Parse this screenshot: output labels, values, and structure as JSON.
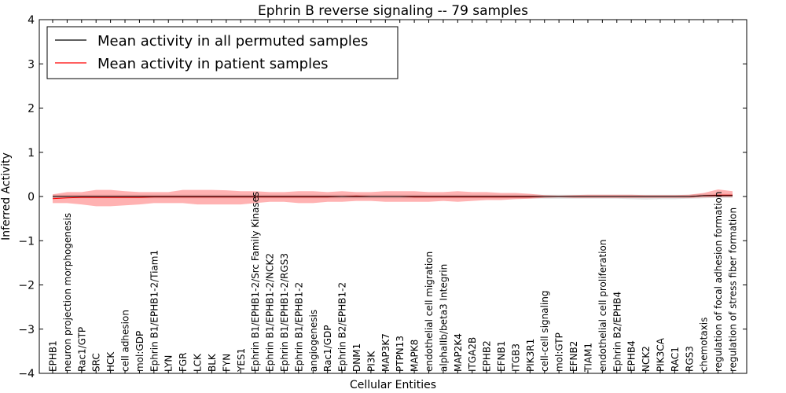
{
  "chart_data": {
    "type": "line",
    "title": "Ephrin B reverse signaling -- 79 samples",
    "xlabel": "Cellular Entities",
    "ylabel": "Inferred Activity",
    "ylim": [
      -4,
      4
    ],
    "yticks": [
      -4,
      -3,
      -2,
      -1,
      0,
      1,
      2,
      3,
      4
    ],
    "ytick_labels": [
      "−4",
      "−3",
      "−2",
      "−1",
      "0",
      "1",
      "2",
      "3",
      "4"
    ],
    "categories": [
      "EPHB1",
      "neuron projection morphogenesis",
      "Rac1/GTP",
      "SRC",
      "HCK",
      "cell adhesion",
      "mol:GDP",
      "Ephrin B1/EPHB1-2/Tiam1",
      "LYN",
      "FGR",
      "LCK",
      "BLK",
      "FYN",
      "YES1",
      "Ephrin B1/EPHB1-2/Src Family Kinases",
      "Ephrin B1/EPHB1-2/NCK2",
      "Ephrin B1/EPHB1-2/RGS3",
      "Ephrin B1/EPHB1-2",
      "angiogenesis",
      "Rac1/GDP",
      "Ephrin B2/EPHB1-2",
      "DNM1",
      "PI3K",
      "MAP3K7",
      "PTPN13",
      "MAPK8",
      "endothelial cell migration",
      "alphaIIb/beta3 Integrin",
      "MAP2K4",
      "ITGA2B",
      "EPHB2",
      "EFNB1",
      "ITGB3",
      "PIK3R1",
      "cell-cell signaling",
      "mol:GTP",
      "EFNB2",
      "TIAM1",
      "endothelial cell proliferation",
      "Ephrin B2/EPHB4",
      "EPHB4",
      "NCK2",
      "PIK3CA",
      "RAC1",
      "RGS3",
      "chemotaxis",
      "regulation of focal adhesion formation",
      "regulation of stress fiber formation"
    ],
    "series": [
      {
        "name": "Mean activity in all permuted samples",
        "color": "#000000",
        "values": [
          0,
          0,
          0,
          0,
          0,
          0,
          0,
          0,
          0,
          0,
          0,
          0,
          0,
          0,
          0,
          0,
          0,
          0,
          0,
          0,
          0,
          0,
          0,
          0,
          0,
          0,
          0,
          0,
          0,
          0,
          0,
          0,
          0,
          0,
          0,
          0,
          0,
          0,
          0,
          0,
          0,
          0,
          0,
          0,
          0,
          0.02,
          0.02,
          0.02
        ],
        "band_upper": [
          0.04,
          0.04,
          0.04,
          0.04,
          0.04,
          0.04,
          0.04,
          0.04,
          0.04,
          0.04,
          0.04,
          0.04,
          0.04,
          0.04,
          0.04,
          0.04,
          0.04,
          0.04,
          0.04,
          0.04,
          0.04,
          0.04,
          0.04,
          0.04,
          0.04,
          0.04,
          0.04,
          0.04,
          0.04,
          0.04,
          0.04,
          0.04,
          0.04,
          0.04,
          0.04,
          0.04,
          0.04,
          0.04,
          0.04,
          0.04,
          0.04,
          0.04,
          0.04,
          0.04,
          0.04,
          0.06,
          0.06,
          0.06
        ],
        "band_lower": [
          -0.04,
          -0.04,
          -0.04,
          -0.04,
          -0.04,
          -0.04,
          -0.04,
          -0.04,
          -0.04,
          -0.04,
          -0.04,
          -0.04,
          -0.04,
          -0.04,
          -0.04,
          -0.04,
          -0.04,
          -0.04,
          -0.04,
          -0.04,
          -0.04,
          -0.04,
          -0.04,
          -0.04,
          -0.04,
          -0.04,
          -0.04,
          -0.04,
          -0.04,
          -0.04,
          -0.04,
          -0.04,
          -0.04,
          -0.04,
          -0.05,
          -0.05,
          -0.05,
          -0.05,
          -0.05,
          -0.05,
          -0.06,
          -0.07,
          -0.06,
          -0.06,
          -0.05,
          -0.04,
          -0.03,
          -0.03
        ]
      },
      {
        "name": "Mean activity in patient samples",
        "color": "#ff0000",
        "values": [
          -0.05,
          -0.03,
          -0.02,
          -0.02,
          -0.02,
          -0.02,
          -0.02,
          -0.01,
          -0.01,
          -0.01,
          -0.01,
          -0.01,
          -0.01,
          -0.01,
          -0.01,
          -0.01,
          -0.01,
          -0.01,
          -0.01,
          -0.01,
          0.0,
          0.01,
          0.0,
          0.0,
          0.0,
          -0.01,
          -0.01,
          -0.01,
          -0.01,
          -0.01,
          -0.01,
          -0.01,
          -0.01,
          -0.01,
          0.0,
          0.0,
          0.0,
          0.0,
          0.0,
          0.0,
          0.0,
          0.0,
          0.0,
          0.0,
          0.0,
          0.02,
          0.03,
          0.03
        ],
        "band_upper": [
          0.05,
          0.1,
          0.1,
          0.15,
          0.15,
          0.12,
          0.1,
          0.1,
          0.1,
          0.15,
          0.15,
          0.15,
          0.14,
          0.12,
          0.12,
          0.1,
          0.1,
          0.12,
          0.12,
          0.1,
          0.12,
          0.1,
          0.1,
          0.12,
          0.12,
          0.12,
          0.1,
          0.1,
          0.12,
          0.1,
          0.1,
          0.08,
          0.08,
          0.06,
          0.03,
          0.02,
          0.03,
          0.04,
          0.04,
          0.04,
          0.04,
          0.03,
          0.03,
          0.03,
          0.04,
          0.08,
          0.16,
          0.12
        ],
        "band_lower": [
          -0.15,
          -0.15,
          -0.18,
          -0.22,
          -0.22,
          -0.2,
          -0.18,
          -0.15,
          -0.15,
          -0.15,
          -0.18,
          -0.18,
          -0.18,
          -0.18,
          -0.15,
          -0.12,
          -0.12,
          -0.15,
          -0.15,
          -0.12,
          -0.12,
          -0.1,
          -0.1,
          -0.12,
          -0.12,
          -0.12,
          -0.12,
          -0.1,
          -0.12,
          -0.1,
          -0.08,
          -0.08,
          -0.06,
          -0.05,
          -0.03,
          -0.02,
          -0.03,
          -0.03,
          -0.03,
          -0.03,
          -0.03,
          -0.03,
          -0.03,
          -0.03,
          -0.03,
          -0.02,
          -0.01,
          -0.01
        ]
      }
    ],
    "legend_position": "upper-left",
    "grid": false
  }
}
